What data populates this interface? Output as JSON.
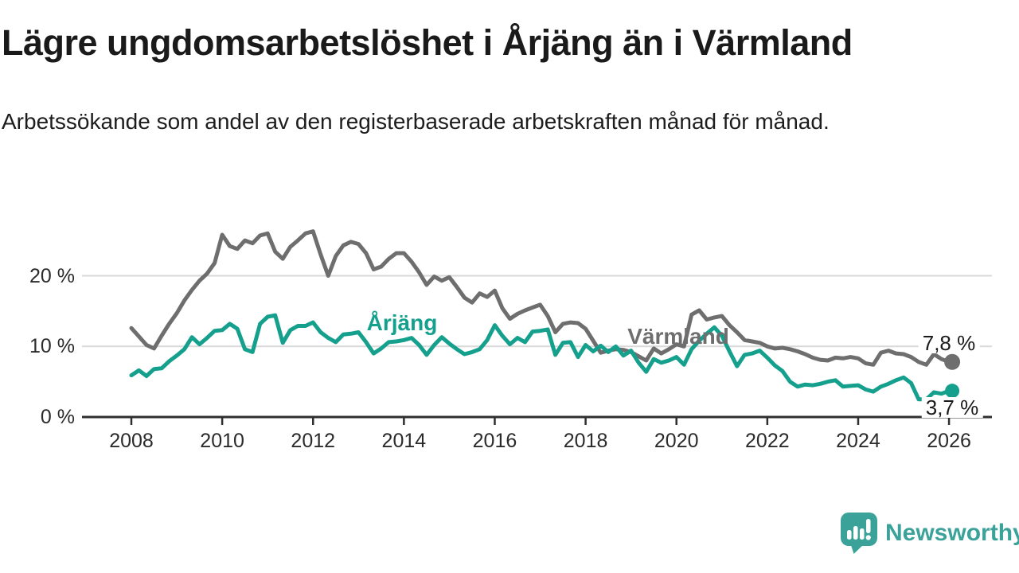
{
  "header": {
    "title": "Lägre ungdomsarbetslöshet i Årjäng än i Värmland",
    "subtitle": "Arbetssökande som andel av den registerbaserade arbetskraften månad för månad."
  },
  "branding": {
    "name": "Newsworthy",
    "logo_color": "#3ba29a",
    "logo_icon": "speech-bubble-bar-chart-icon"
  },
  "colors": {
    "arjang_teal": "#14a08c",
    "varmland_gray": "#6e6e6e",
    "axis": "#2f2f2f",
    "grid": "#d9d9d9",
    "text": "#1a1a1a"
  },
  "chart_data": {
    "type": "line",
    "title": "Lägre ungdomsarbetslöshet i Årjäng än i Värmland",
    "subtitle": "Arbetssökande som andel av den registerbaserade arbetskraften månad för månad.",
    "x_unit": "time",
    "x_start_year": 2008,
    "x_interval_months": 2,
    "x_end_year": 2026,
    "xlim": [
      2007.9,
      2026.95
    ],
    "ylim": [
      0,
      28
    ],
    "grid": "horizontal",
    "legend_position": "inline-labels",
    "x_ticks": [
      2008,
      2010,
      2012,
      2014,
      2016,
      2018,
      2020,
      2022,
      2024,
      2026
    ],
    "x_tick_labels": [
      "2008",
      "2010",
      "2012",
      "2014",
      "2016",
      "2018",
      "2020",
      "2022",
      "2024",
      "2026"
    ],
    "y_ticks": [
      0,
      10,
      20
    ],
    "y_tick_labels": [
      "0 %",
      "10 %",
      "20 %"
    ],
    "series": [
      {
        "name": "Värmland",
        "slug": "varmland",
        "color": "#6e6e6e",
        "end_label": "7,8 %",
        "end_value": 7.8,
        "values": [
          12.6,
          11.4,
          10.2,
          9.7,
          11.5,
          13.2,
          14.7,
          16.5,
          18.0,
          19.3,
          20.3,
          21.8,
          25.8,
          24.2,
          23.8,
          25.0,
          24.6,
          25.7,
          26.0,
          23.4,
          22.4,
          24.1,
          25.0,
          26.0,
          26.3,
          23.0,
          20.0,
          22.8,
          24.3,
          24.8,
          24.5,
          23.2,
          20.9,
          21.3,
          22.4,
          23.2,
          23.2,
          22.0,
          20.5,
          18.7,
          19.9,
          19.3,
          19.8,
          18.4,
          16.9,
          16.2,
          17.5,
          17.0,
          17.9,
          15.4,
          13.9,
          14.6,
          15.1,
          15.5,
          15.9,
          14.3,
          12.0,
          13.2,
          13.4,
          13.3,
          12.5,
          10.8,
          9.1,
          9.4,
          9.6,
          9.5,
          9.2,
          8.6,
          8.0,
          9.7,
          9.0,
          9.6,
          10.3,
          10.0,
          14.5,
          15.1,
          13.8,
          14.1,
          14.3,
          13.0,
          12.0,
          10.9,
          10.7,
          10.5,
          10.0,
          9.7,
          9.8,
          9.6,
          9.3,
          8.9,
          8.4,
          8.1,
          8.0,
          8.4,
          8.3,
          8.5,
          8.3,
          7.6,
          7.4,
          9.1,
          9.4,
          9.0,
          8.9,
          8.5,
          7.8,
          7.4,
          8.9,
          8.2,
          7.8
        ]
      },
      {
        "name": "Årjäng",
        "slug": "arjang",
        "color": "#14a08c",
        "end_label": "3,7 %",
        "end_value": 3.7,
        "values": [
          5.9,
          6.6,
          5.8,
          6.8,
          6.9,
          7.9,
          8.7,
          9.6,
          11.3,
          10.3,
          11.2,
          12.2,
          12.3,
          13.2,
          12.5,
          9.6,
          9.2,
          13.2,
          14.2,
          14.4,
          10.5,
          12.3,
          12.9,
          12.9,
          13.4,
          12.0,
          11.2,
          10.6,
          11.7,
          11.8,
          12.0,
          10.6,
          9.0,
          9.7,
          10.6,
          10.7,
          10.9,
          11.2,
          10.2,
          8.8,
          10.2,
          11.3,
          10.4,
          9.6,
          8.9,
          9.2,
          9.6,
          10.9,
          13.0,
          11.5,
          10.3,
          11.2,
          10.6,
          12.1,
          12.2,
          12.4,
          8.8,
          10.5,
          10.6,
          8.5,
          10.2,
          9.3,
          10.1,
          9.2,
          10.0,
          8.7,
          9.4,
          7.7,
          6.4,
          8.2,
          7.7,
          8.0,
          8.5,
          7.4,
          9.6,
          10.8,
          11.8,
          12.7,
          11.5,
          9.3,
          7.2,
          8.8,
          9.0,
          9.4,
          8.4,
          7.3,
          6.5,
          5.0,
          4.3,
          4.6,
          4.5,
          4.7,
          5.0,
          5.2,
          4.3,
          4.4,
          4.5,
          3.9,
          3.6,
          4.3,
          4.7,
          5.2,
          5.6,
          4.8,
          2.5,
          2.5,
          3.5,
          3.3,
          3.7
        ]
      }
    ]
  }
}
